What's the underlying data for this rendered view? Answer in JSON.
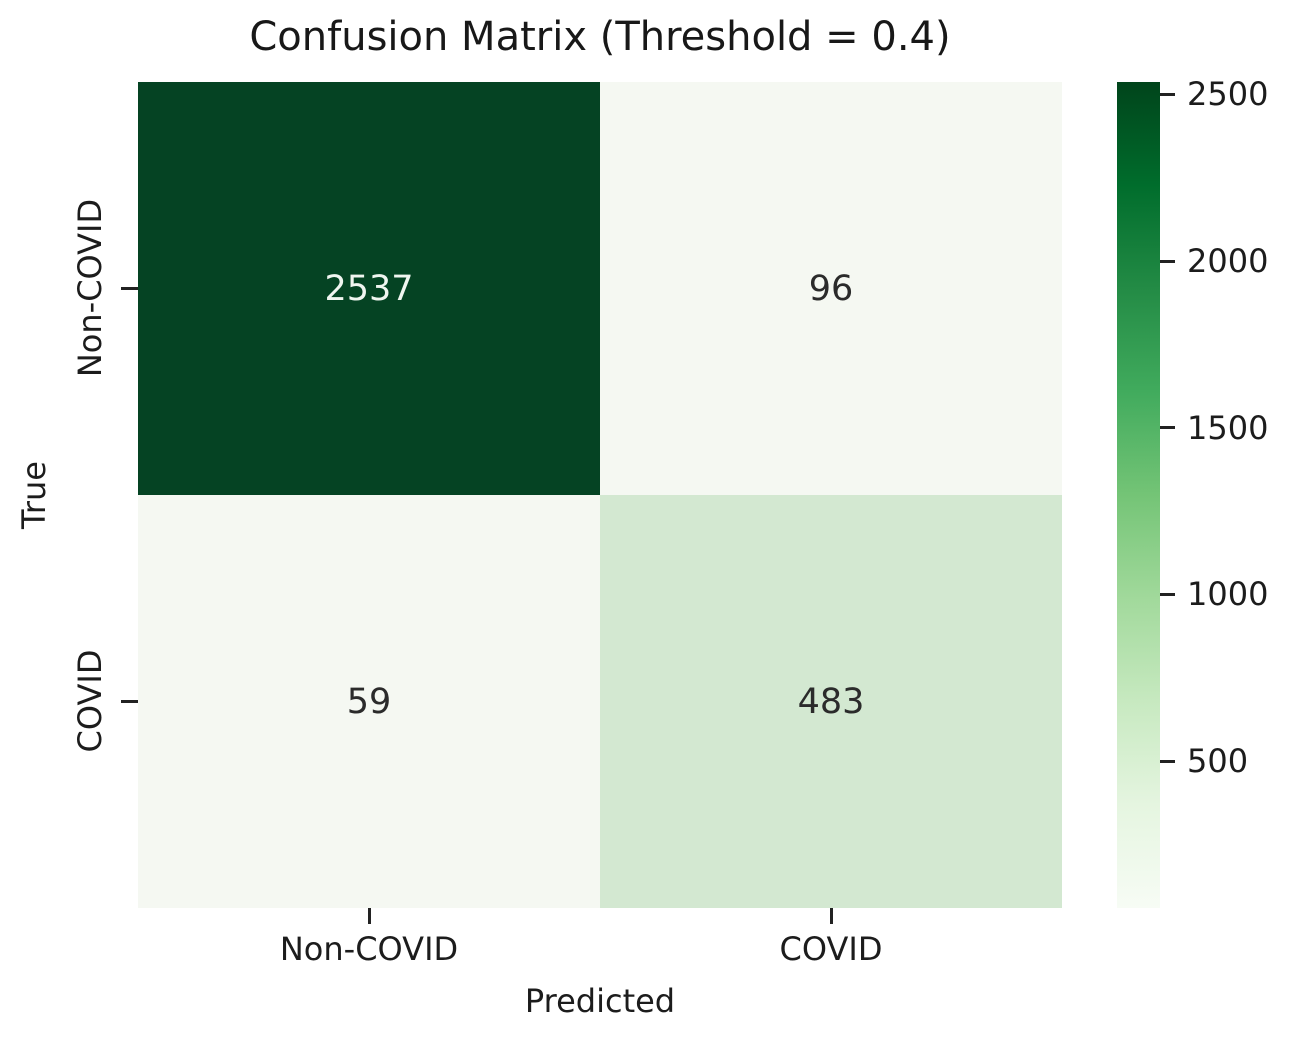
{
  "chart_data": {
    "type": "heatmap",
    "title": "Confusion Matrix (Threshold = 0.4)",
    "xlabel": "Predicted",
    "ylabel": "True",
    "x_categories": [
      "Non-COVID",
      "COVID"
    ],
    "y_categories": [
      "Non-COVID",
      "COVID"
    ],
    "values": [
      [
        2537,
        96
      ],
      [
        59,
        483
      ]
    ],
    "vmin": 59,
    "vmax": 2537,
    "colormap": "Greens",
    "colormap_stops": [
      "#f7fcf5",
      "#e5f5e0",
      "#c7e9c0",
      "#a1d99b",
      "#74c476",
      "#41ab5d",
      "#238b45",
      "#006d2c",
      "#00441b"
    ],
    "colorbar_ticks": [
      2500,
      2000,
      1500,
      1000,
      500
    ],
    "cell_colors": [
      [
        "#054323",
        "#f5f8f2"
      ],
      [
        "#f5f8f2",
        "#d3e8d1"
      ]
    ],
    "cell_text_colors": [
      [
        "#f0f6f0",
        "#2b2b2b"
      ],
      [
        "#2b2b2b",
        "#2b2b2b"
      ]
    ],
    "background_color": "#ffffff",
    "grid": false,
    "legend_position": "right-colorbar"
  }
}
